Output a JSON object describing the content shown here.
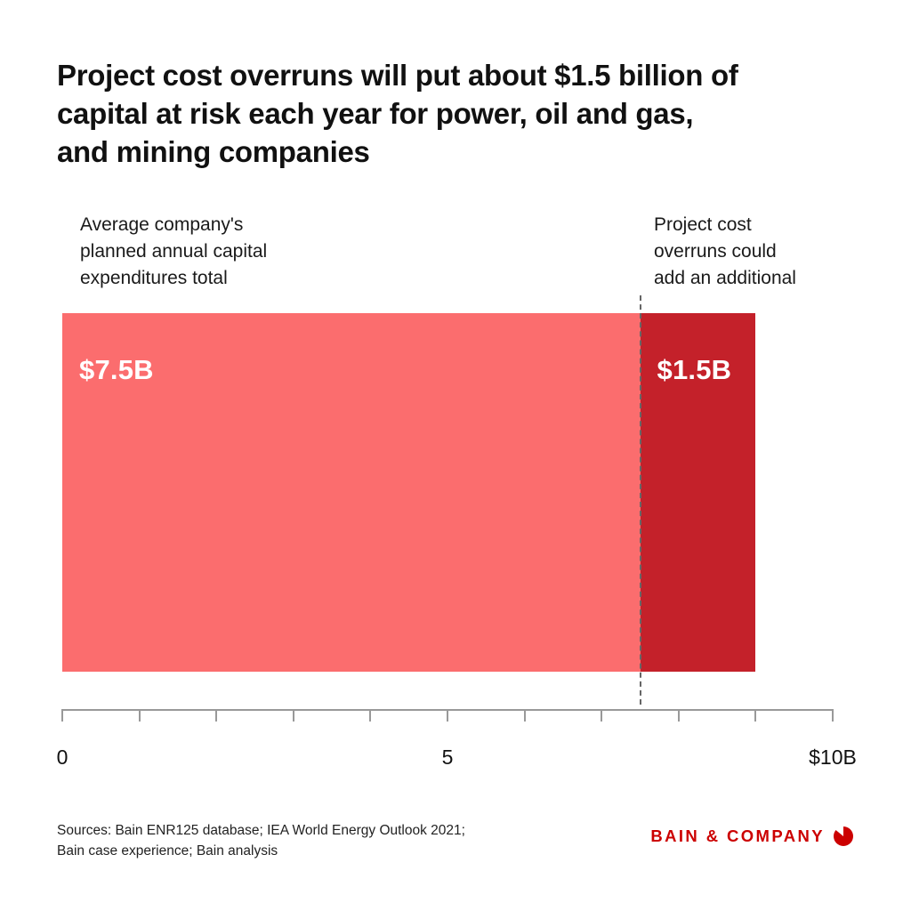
{
  "title": "Project cost overruns will put about $1.5 billion of\ncapital at risk each year for power, oil and gas,\nand mining companies",
  "annotations": {
    "left": "Average company's\nplanned annual capital\nexpenditures total",
    "right": "Project cost\noverruns could\nadd an additional"
  },
  "chart_data": {
    "type": "bar",
    "orientation": "horizontal",
    "stacked": true,
    "title": "Project cost overruns will put about $1.5 billion of capital at risk each year for power, oil and gas, and mining companies",
    "series": [
      {
        "name": "Average company's planned annual capital expenditures total",
        "value": 7.5,
        "label": "$7.5B",
        "color": "#fb6d6e"
      },
      {
        "name": "Project cost overruns could add an additional",
        "value": 1.5,
        "label": "$1.5B",
        "color": "#c4212a"
      }
    ],
    "xlim": [
      0,
      10
    ],
    "xlabel": "",
    "ylabel": "",
    "grid": false,
    "divider_at": 7.5,
    "axis": {
      "minor_tick_step": 1,
      "tick_labels": [
        {
          "value": 0,
          "label": "0"
        },
        {
          "value": 5,
          "label": "5"
        },
        {
          "value": 10,
          "label": "$10B"
        }
      ]
    }
  },
  "footer": {
    "sources": "Sources: Bain ENR125 database; IEA World Energy Outlook 2021;\nBain case experience; Bain analysis",
    "brand": "BAIN & COMPANY"
  },
  "colors": {
    "planned_segment": "#fb6d6e",
    "overrun_segment": "#c4212a",
    "brand_red": "#cc0000",
    "axis_gray": "#999999",
    "divider_gray": "#666666"
  }
}
